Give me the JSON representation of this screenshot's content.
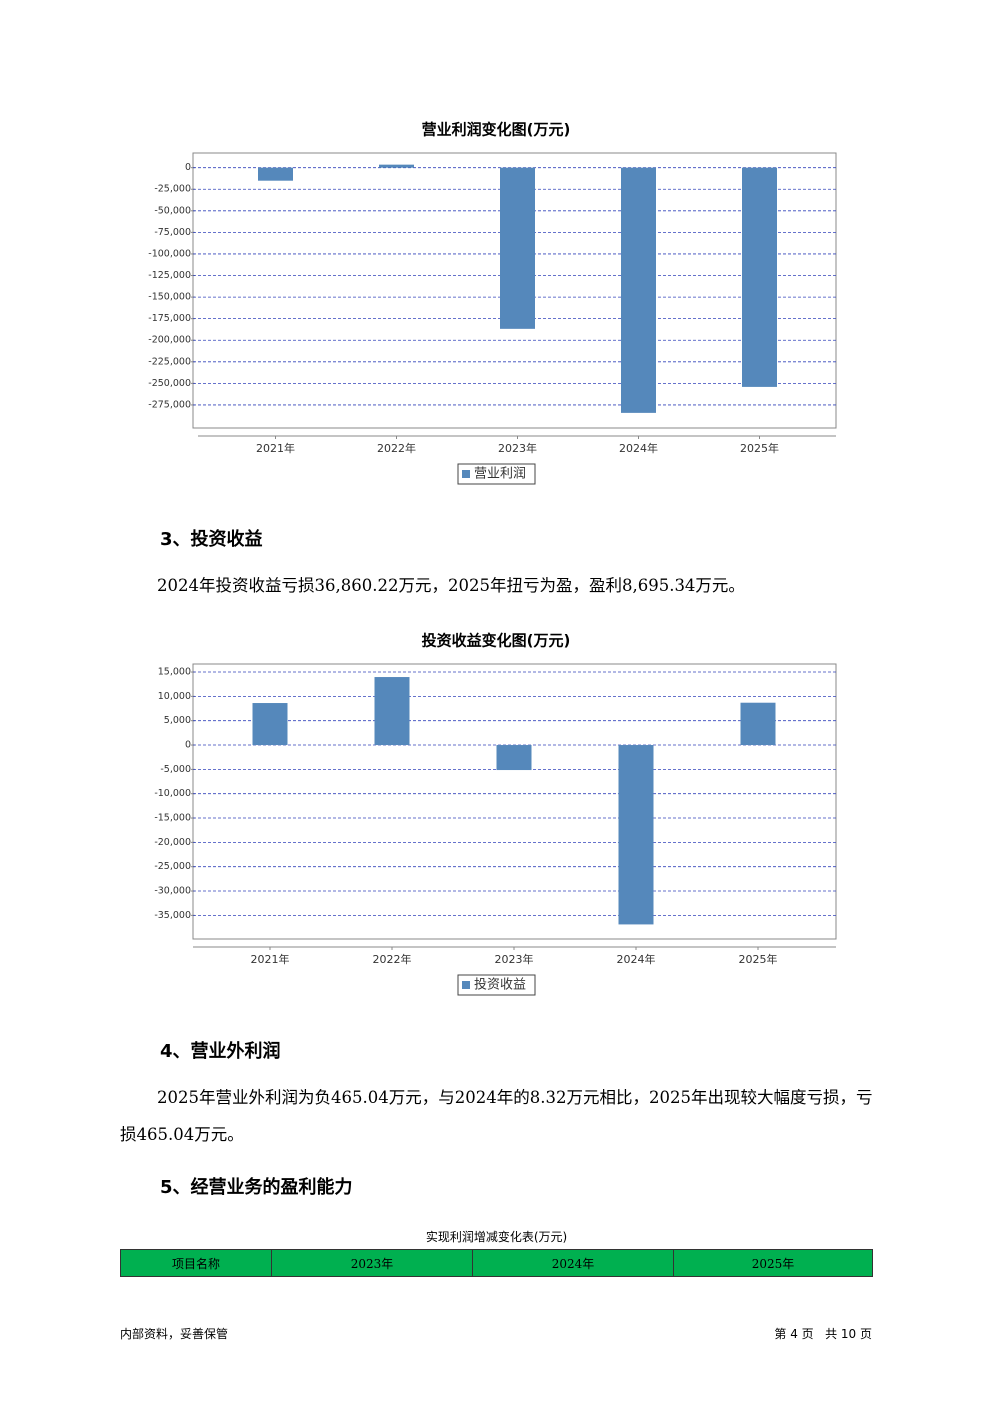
{
  "chart_data": [
    {
      "type": "bar",
      "title": "营业利润变化图(万元)",
      "categories": [
        "2021年",
        "2022年",
        "2023年",
        "2024年",
        "2025年"
      ],
      "series": [
        {
          "name": "营业利润",
          "color": "#5588bb",
          "values": [
            -15100,
            3500,
            -186800,
            -284200,
            -254100
          ]
        }
      ],
      "ylim": [
        -311000,
        17000
      ],
      "yticks": [
        0,
        {
          "value": -25000,
          "label": "-25,000"
        },
        {
          "value": -50000,
          "label": "-50,000"
        },
        {
          "value": -75000,
          "label": "-75,000"
        },
        {
          "value": -100000,
          "label": "-100,000"
        },
        {
          "value": -125000,
          "label": "-125,000"
        },
        {
          "value": -150000,
          "label": "-150,000"
        },
        {
          "value": -175000,
          "label": "-175,000"
        },
        {
          "value": -200000,
          "label": "-200,000"
        },
        {
          "value": -225000,
          "label": "-225,000"
        },
        {
          "value": -250000,
          "label": "-250,000"
        },
        {
          "value": -275000,
          "label": "-275,000"
        }
      ],
      "grid": true
    },
    {
      "type": "bar",
      "title": "投资收益变化图(万元)",
      "categories": [
        "2021年",
        "2022年",
        "2023年",
        "2024年",
        "2025年"
      ],
      "series": [
        {
          "name": "投资收益",
          "color": "#5588bb",
          "values": [
            8630,
            13970,
            -5140,
            -36860.22,
            8695.34
          ]
        }
      ],
      "ylim": [
        -41500,
        16650
      ],
      "yticks": [
        {
          "value": 15000,
          "label": "15,000"
        },
        {
          "value": 10000,
          "label": "10,000"
        },
        {
          "value": 5000,
          "label": "5,000"
        },
        0,
        {
          "value": -5000,
          "label": "-5,000"
        },
        {
          "value": -10000,
          "label": "-10,000"
        },
        {
          "value": -15000,
          "label": "-15,000"
        },
        {
          "value": -20000,
          "label": "-20,000"
        },
        {
          "value": -25000,
          "label": "-25,000"
        },
        {
          "value": -30000,
          "label": "-30,000"
        },
        {
          "value": -35000,
          "label": "-35,000"
        }
      ],
      "grid": true
    }
  ],
  "sections": [
    {
      "heading": "3、投资收益",
      "paragraph": "2024年投资收益亏损36,860.22万元，2025年扭亏为盈，盈利8,695.34万元。"
    },
    {
      "heading": "4、营业外利润",
      "paragraph": "2025年营业外利润为负465.04万元，与2024年的8.32万元相比，2025年出现较大幅度亏损，亏损465.04万元。"
    },
    {
      "heading": "5、经营业务的盈利能力"
    }
  ],
  "table": {
    "title": "实现利润增减变化表(万元)",
    "header": [
      "项目名称",
      "2023年",
      "2024年",
      "2025年"
    ]
  },
  "footer": {
    "left": "内部资料，妥善保管",
    "right": "第 4 页   共 10 页"
  }
}
